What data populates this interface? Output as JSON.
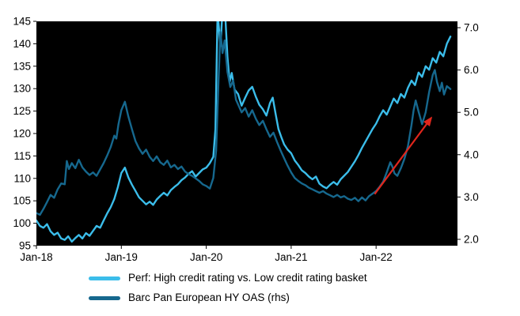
{
  "chart_data": {
    "type": "line",
    "plot_bg": "#000000",
    "legend_position": "bottom",
    "grid": false,
    "x_axis": {
      "domain": [
        0,
        59.5
      ],
      "unit": "months-since-Jan-2018",
      "ticks": [
        {
          "label": "Jan-18",
          "month": 0
        },
        {
          "label": "Jan-19",
          "month": 12
        },
        {
          "label": "Jan-20",
          "month": 24
        },
        {
          "label": "Jan-21",
          "month": 36
        },
        {
          "label": "Jan-22",
          "month": 48
        }
      ]
    },
    "y_left": {
      "domain": [
        95,
        145
      ],
      "ticks": [
        95,
        100,
        105,
        110,
        115,
        120,
        125,
        130,
        135,
        140,
        145
      ]
    },
    "y_right": {
      "domain": [
        1.85,
        7.15
      ],
      "ticks": [
        "2.0",
        "3.0",
        "4.0",
        "5.0",
        "6.0",
        "7.0"
      ]
    },
    "series": [
      {
        "name": "Perf: High credit rating vs. Low credit rating basket",
        "axis": "left",
        "color": "#3bbdea",
        "points": [
          [
            0,
            100.6
          ],
          [
            0.5,
            99.4
          ],
          [
            1,
            99.0
          ],
          [
            1.5,
            99.8
          ],
          [
            2,
            98.2
          ],
          [
            2.5,
            97.4
          ],
          [
            3,
            97.9
          ],
          [
            3.5,
            96.6
          ],
          [
            4,
            96.3
          ],
          [
            4.5,
            97.1
          ],
          [
            5,
            95.9
          ],
          [
            5.5,
            96.7
          ],
          [
            6,
            97.4
          ],
          [
            6.5,
            96.6
          ],
          [
            7,
            97.8
          ],
          [
            7.5,
            97.2
          ],
          [
            8,
            98.3
          ],
          [
            8.5,
            99.4
          ],
          [
            9,
            99.0
          ],
          [
            9.5,
            100.6
          ],
          [
            10,
            102.2
          ],
          [
            10.5,
            103.6
          ],
          [
            11,
            105.4
          ],
          [
            11.5,
            108.0
          ],
          [
            12,
            111.2
          ],
          [
            12.5,
            112.4
          ],
          [
            13,
            110.2
          ],
          [
            13.5,
            108.6
          ],
          [
            14,
            107.2
          ],
          [
            14.5,
            105.8
          ],
          [
            15,
            105.0
          ],
          [
            15.5,
            104.2
          ],
          [
            16,
            104.8
          ],
          [
            16.5,
            104.1
          ],
          [
            17,
            105.3
          ],
          [
            17.5,
            106.1
          ],
          [
            18,
            106.8
          ],
          [
            18.5,
            106.2
          ],
          [
            19,
            107.4
          ],
          [
            19.5,
            108.1
          ],
          [
            20,
            108.7
          ],
          [
            20.5,
            109.6
          ],
          [
            21,
            110.2
          ],
          [
            21.5,
            111.0
          ],
          [
            22,
            111.6
          ],
          [
            22.5,
            110.4
          ],
          [
            23,
            111.2
          ],
          [
            23.5,
            112.0
          ],
          [
            24,
            112.4
          ],
          [
            24.5,
            113.4
          ],
          [
            25,
            114.8
          ],
          [
            25.3,
            121.0
          ],
          [
            25.6,
            147.0
          ],
          [
            26,
            139.5
          ],
          [
            26.3,
            147.5
          ],
          [
            26.7,
            146.0
          ],
          [
            27,
            137.0
          ],
          [
            27.3,
            131.5
          ],
          [
            27.6,
            133.5
          ],
          [
            28,
            129.8
          ],
          [
            28.5,
            128.8
          ],
          [
            29,
            126.2
          ],
          [
            29.5,
            128.0
          ],
          [
            30,
            129.6
          ],
          [
            30.5,
            130.4
          ],
          [
            31,
            128.2
          ],
          [
            31.5,
            126.4
          ],
          [
            32,
            125.4
          ],
          [
            32.5,
            124.0
          ],
          [
            33,
            126.8
          ],
          [
            33.4,
            128.0
          ],
          [
            33.8,
            124.4
          ],
          [
            34.2,
            121.0
          ],
          [
            34.6,
            119.2
          ],
          [
            35,
            117.6
          ],
          [
            35.5,
            116.4
          ],
          [
            36,
            115.6
          ],
          [
            36.5,
            114.0
          ],
          [
            37,
            113.0
          ],
          [
            37.5,
            111.8
          ],
          [
            38,
            111.2
          ],
          [
            38.5,
            110.4
          ],
          [
            39,
            109.8
          ],
          [
            39.5,
            110.4
          ],
          [
            40,
            108.8
          ],
          [
            40.5,
            108.2
          ],
          [
            41,
            107.8
          ],
          [
            41.5,
            108.6
          ],
          [
            42,
            109.2
          ],
          [
            42.5,
            108.6
          ],
          [
            43,
            109.8
          ],
          [
            43.5,
            110.6
          ],
          [
            44,
            111.4
          ],
          [
            44.5,
            112.6
          ],
          [
            45,
            113.8
          ],
          [
            45.5,
            115.2
          ],
          [
            46,
            116.8
          ],
          [
            46.5,
            118.2
          ],
          [
            47,
            119.6
          ],
          [
            47.5,
            121.0
          ],
          [
            48,
            122.2
          ],
          [
            48.5,
            123.8
          ],
          [
            49,
            125.2
          ],
          [
            49.5,
            124.2
          ],
          [
            50,
            126.0
          ],
          [
            50.5,
            127.8
          ],
          [
            51,
            126.8
          ],
          [
            51.5,
            128.8
          ],
          [
            52,
            128.0
          ],
          [
            52.5,
            130.2
          ],
          [
            53,
            131.8
          ],
          [
            53.5,
            130.8
          ],
          [
            54,
            133.6
          ],
          [
            54.5,
            132.6
          ],
          [
            55,
            135.0
          ],
          [
            55.5,
            134.2
          ],
          [
            56,
            136.8
          ],
          [
            56.5,
            135.8
          ],
          [
            57,
            138.2
          ],
          [
            57.5,
            137.2
          ],
          [
            58,
            140.0
          ],
          [
            58.5,
            141.6
          ]
        ]
      },
      {
        "name": "Barc Pan European HY OAS (rhs)",
        "axis": "right",
        "color": "#16688e",
        "points": [
          [
            0,
            2.62
          ],
          [
            0.5,
            2.58
          ],
          [
            1,
            2.72
          ],
          [
            1.5,
            2.88
          ],
          [
            2,
            3.05
          ],
          [
            2.5,
            2.98
          ],
          [
            3,
            3.18
          ],
          [
            3.5,
            3.32
          ],
          [
            4,
            3.3
          ],
          [
            4.3,
            3.85
          ],
          [
            4.6,
            3.66
          ],
          [
            5,
            3.8
          ],
          [
            5.5,
            3.68
          ],
          [
            6,
            3.88
          ],
          [
            6.5,
            3.7
          ],
          [
            7,
            3.6
          ],
          [
            7.5,
            3.52
          ],
          [
            8,
            3.58
          ],
          [
            8.5,
            3.5
          ],
          [
            9,
            3.65
          ],
          [
            9.5,
            3.8
          ],
          [
            10,
            3.98
          ],
          [
            10.5,
            4.18
          ],
          [
            11,
            4.45
          ],
          [
            11.3,
            4.38
          ],
          [
            11.6,
            4.72
          ],
          [
            12,
            5.05
          ],
          [
            12.5,
            5.25
          ],
          [
            13,
            4.9
          ],
          [
            13.5,
            4.6
          ],
          [
            14,
            4.32
          ],
          [
            14.5,
            4.15
          ],
          [
            15,
            4.02
          ],
          [
            15.5,
            4.12
          ],
          [
            16,
            3.95
          ],
          [
            16.5,
            3.85
          ],
          [
            17,
            3.96
          ],
          [
            17.5,
            3.82
          ],
          [
            18,
            3.76
          ],
          [
            18.5,
            3.86
          ],
          [
            19,
            3.7
          ],
          [
            19.5,
            3.76
          ],
          [
            20,
            3.66
          ],
          [
            20.5,
            3.72
          ],
          [
            21,
            3.6
          ],
          [
            21.5,
            3.54
          ],
          [
            22,
            3.5
          ],
          [
            22.5,
            3.44
          ],
          [
            23,
            3.38
          ],
          [
            23.5,
            3.3
          ],
          [
            24,
            3.26
          ],
          [
            24.5,
            3.2
          ],
          [
            25,
            3.45
          ],
          [
            25.4,
            4.1
          ],
          [
            25.7,
            5.6
          ],
          [
            26,
            6.9
          ],
          [
            26.3,
            6.4
          ],
          [
            26.6,
            6.7
          ],
          [
            27,
            5.95
          ],
          [
            27.4,
            5.6
          ],
          [
            27.8,
            5.75
          ],
          [
            28.2,
            5.3
          ],
          [
            28.6,
            5.15
          ],
          [
            29,
            5.0
          ],
          [
            29.5,
            5.1
          ],
          [
            30,
            4.9
          ],
          [
            30.5,
            5.05
          ],
          [
            31,
            4.85
          ],
          [
            31.5,
            4.7
          ],
          [
            32,
            4.8
          ],
          [
            32.5,
            4.6
          ],
          [
            33,
            4.42
          ],
          [
            33.5,
            4.52
          ],
          [
            34,
            4.3
          ],
          [
            34.5,
            4.1
          ],
          [
            35,
            3.92
          ],
          [
            35.5,
            3.74
          ],
          [
            36,
            3.58
          ],
          [
            36.5,
            3.45
          ],
          [
            37,
            3.38
          ],
          [
            37.5,
            3.32
          ],
          [
            38,
            3.28
          ],
          [
            38.5,
            3.22
          ],
          [
            39,
            3.18
          ],
          [
            39.5,
            3.14
          ],
          [
            40,
            3.1
          ],
          [
            40.5,
            3.14
          ],
          [
            41,
            3.08
          ],
          [
            41.5,
            3.04
          ],
          [
            42,
            3.0
          ],
          [
            42.5,
            3.05
          ],
          [
            43,
            2.99
          ],
          [
            43.5,
            3.02
          ],
          [
            44,
            2.96
          ],
          [
            44.5,
            2.93
          ],
          [
            45,
            2.98
          ],
          [
            45.5,
            2.9
          ],
          [
            46,
            2.99
          ],
          [
            46.5,
            2.92
          ],
          [
            47,
            3.02
          ],
          [
            47.5,
            3.08
          ],
          [
            48,
            3.14
          ],
          [
            48.5,
            3.24
          ],
          [
            49,
            3.36
          ],
          [
            49.5,
            3.58
          ],
          [
            50,
            3.82
          ],
          [
            50.3,
            3.72
          ],
          [
            50.6,
            3.56
          ],
          [
            51,
            3.5
          ],
          [
            51.5,
            3.68
          ],
          [
            52,
            3.9
          ],
          [
            52.5,
            4.2
          ],
          [
            53,
            4.7
          ],
          [
            53.3,
            5.05
          ],
          [
            53.6,
            5.28
          ],
          [
            54,
            5.02
          ],
          [
            54.5,
            4.72
          ],
          [
            55,
            5.0
          ],
          [
            55.5,
            5.48
          ],
          [
            56,
            5.88
          ],
          [
            56.3,
            6.0
          ],
          [
            56.6,
            5.72
          ],
          [
            57,
            5.5
          ],
          [
            57.3,
            5.7
          ],
          [
            57.6,
            5.42
          ],
          [
            58,
            5.62
          ],
          [
            58.5,
            5.55
          ]
        ]
      }
    ],
    "annotations": [
      {
        "type": "arrow",
        "color": "#e0261c",
        "axis": "left",
        "from": [
          47.8,
          106.5
        ],
        "to": [
          55.8,
          123.5
        ]
      }
    ]
  }
}
